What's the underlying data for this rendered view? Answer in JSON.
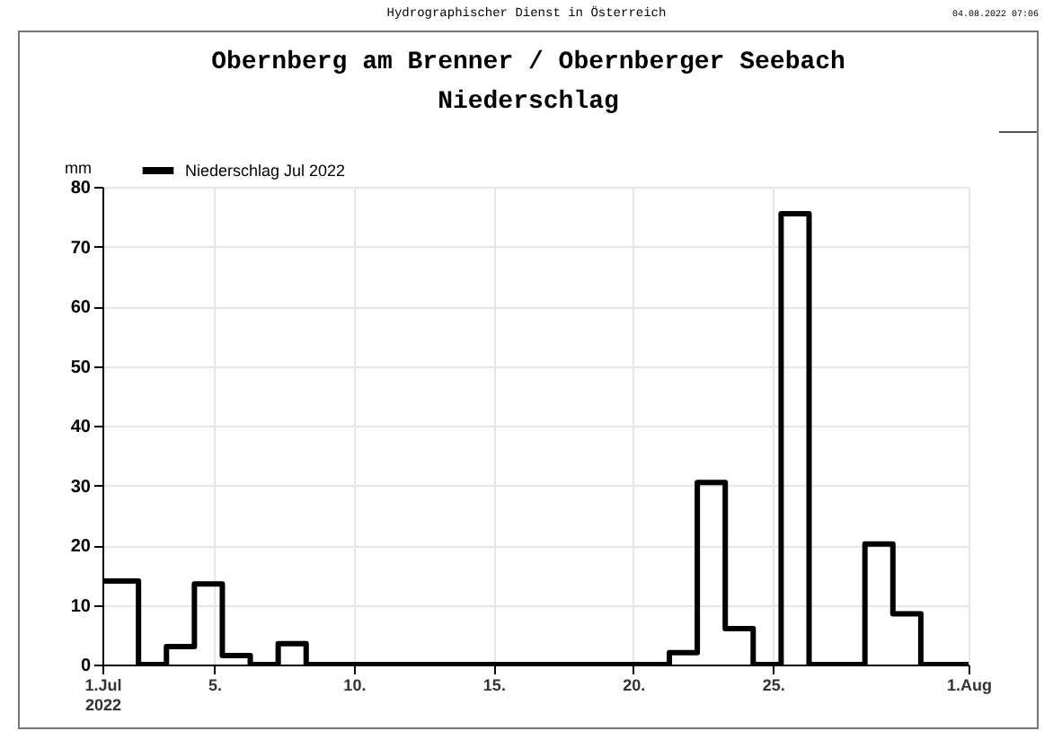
{
  "chart_data": {
    "type": "step",
    "title": "Obernberg am Brenner / Obernberger Seebach",
    "subtitle": "Niederschlag",
    "ylabel": "mm",
    "annotations": [
      "Hydrographischer Dienst in Österreich",
      "04.08.2022 07:06"
    ],
    "x": [
      "2022-07-01T00:00",
      "2022-07-02T07:00",
      "2022-07-03T07:00",
      "2022-07-04T07:00",
      "2022-07-05T07:00",
      "2022-07-06T07:00",
      "2022-07-07T07:00",
      "2022-07-08T07:00",
      "2022-07-09T07:00",
      "2022-07-10T07:00",
      "2022-07-11T07:00",
      "2022-07-12T07:00",
      "2022-07-13T07:00",
      "2022-07-14T07:00",
      "2022-07-15T07:00",
      "2022-07-16T07:00",
      "2022-07-17T07:00",
      "2022-07-18T07:00",
      "2022-07-19T07:00",
      "2022-07-20T07:00",
      "2022-07-21T07:00",
      "2022-07-22T07:00",
      "2022-07-23T07:00",
      "2022-07-24T07:00",
      "2022-07-25T07:00",
      "2022-07-26T07:00",
      "2022-07-27T07:00",
      "2022-07-28T07:00",
      "2022-07-29T07:00",
      "2022-07-30T07:00",
      "2022-07-31T07:00",
      "2022-08-01T00:00"
    ],
    "series": [
      {
        "name": "Niederschlag Jul 2022",
        "color": "#000000",
        "values": [
          14,
          0,
          3,
          13.5,
          1.5,
          0,
          3.5,
          0,
          0,
          0,
          0,
          0,
          0,
          0,
          0,
          0,
          0,
          0,
          0,
          0,
          2,
          30.5,
          6,
          0,
          75.5,
          0,
          0,
          20.2,
          8.5,
          0,
          0,
          0
        ]
      }
    ],
    "xlim": [
      "2022-07-01",
      "2022-08-01"
    ],
    "xticks": [
      {
        "value": "2022-07-01",
        "label": "1.Jul\n2022"
      },
      {
        "value": "2022-07-05",
        "label": "5."
      },
      {
        "value": "2022-07-10",
        "label": "10."
      },
      {
        "value": "2022-07-15",
        "label": "15."
      },
      {
        "value": "2022-07-20",
        "label": "20."
      },
      {
        "value": "2022-07-25",
        "label": "25."
      },
      {
        "value": "2022-08-01",
        "label": "1.Aug"
      }
    ],
    "ylim": [
      0,
      80
    ],
    "yticks": [
      0,
      10,
      20,
      30,
      40,
      50,
      60,
      70,
      80
    ],
    "grid": true,
    "legend": "top left",
    "line_style": "solid"
  }
}
